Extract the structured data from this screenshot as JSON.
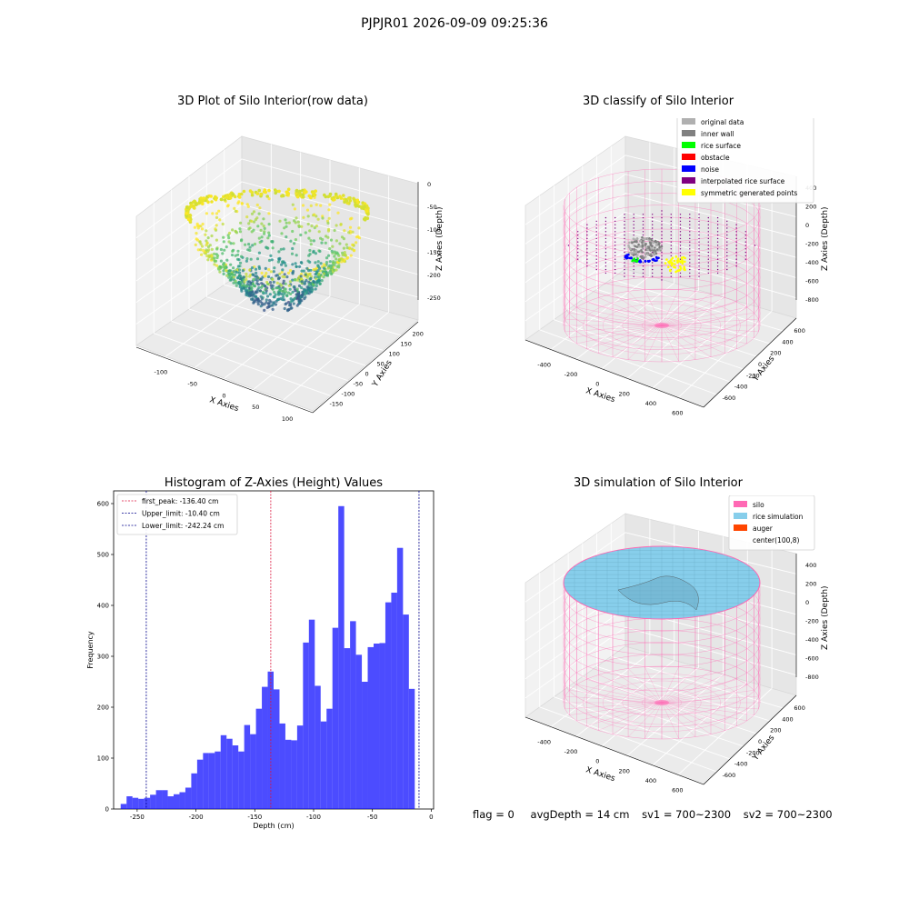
{
  "suptitle": "PJPJR01 2026-09-09 09:25:36",
  "panel_raw": {
    "title": "3D Plot of Silo Interior(row data)",
    "xlabel": "X Axies",
    "ylabel": "Y Axies",
    "zlabel": "Z Axies (Depth)",
    "x_ticks": [
      "-100",
      "-50",
      "0",
      "50",
      "100"
    ],
    "y_ticks": [
      "-150",
      "-100",
      "-50",
      "0",
      "50",
      "100",
      "150",
      "200"
    ],
    "z_ticks": [
      "0",
      "-50",
      "-100",
      "-150",
      "-200",
      "-250"
    ]
  },
  "panel_classify": {
    "title": "3D classify of Silo Interior",
    "xlabel": "X Axies",
    "ylabel": "Y Axies",
    "zlabel": "Z Axies (Depth)",
    "x_ticks": [
      "-400",
      "-200",
      "0",
      "200",
      "400",
      "600"
    ],
    "y_ticks": [
      "-600",
      "-400",
      "-200",
      "0",
      "200",
      "400",
      "600"
    ],
    "z_ticks": [
      "400",
      "200",
      "0",
      "-200",
      "-400",
      "-600",
      "-800"
    ],
    "legend": [
      {
        "label": "original data",
        "color": "#b0b0b0"
      },
      {
        "label": "inner wall",
        "color": "#808080"
      },
      {
        "label": "rice surface",
        "color": "#00ff00"
      },
      {
        "label": "obstacle",
        "color": "#ff0000"
      },
      {
        "label": "noise",
        "color": "#0000ff"
      },
      {
        "label": "interpolated rice surface",
        "color": "#800080"
      },
      {
        "label": "symmetric generated points",
        "color": "#ffff00"
      }
    ]
  },
  "panel_sim": {
    "title": "3D simulation of Silo Interior",
    "xlabel": "X Axies",
    "ylabel": "Y Axies",
    "zlabel": "Z Axies (Depth)",
    "x_ticks": [
      "-400",
      "-200",
      "0",
      "200",
      "400",
      "600"
    ],
    "y_ticks": [
      "-600",
      "-400",
      "-200",
      "0",
      "200",
      "400",
      "600"
    ],
    "z_ticks": [
      "400",
      "200",
      "0",
      "-200",
      "-400",
      "-600",
      "-800"
    ],
    "legend": [
      {
        "label": "silo",
        "color": "#ff69b4"
      },
      {
        "label": "rice simulation",
        "color": "#87ceeb"
      },
      {
        "label": "auger",
        "color": "#ff4500"
      },
      {
        "label": "center(100,8)",
        "color": ""
      }
    ]
  },
  "footer": {
    "flag": "flag = 0",
    "avg_depth": "avgDepth = 14 cm",
    "sv1": "sv1 = 700~2300",
    "sv2": "sv2 = 700~2300"
  },
  "chart_data": {
    "type": "bar",
    "title": "Histogram of Z-Axies (Height) Values",
    "xlabel": "Depth (cm)",
    "ylabel": "Frequency",
    "xlim": [
      -270,
      2
    ],
    "ylim": [
      0,
      625
    ],
    "x_ticks": [
      -250,
      -200,
      -150,
      -100,
      -50,
      0
    ],
    "y_ticks": [
      0,
      100,
      200,
      300,
      400,
      500,
      600
    ],
    "bin_width": 5,
    "bin_start": -264,
    "bar_color": "#0000ff",
    "values": [
      10,
      25,
      22,
      20,
      22,
      28,
      37,
      37,
      25,
      29,
      33,
      42,
      70,
      97,
      110,
      110,
      113,
      145,
      138,
      125,
      113,
      165,
      147,
      197,
      240,
      270,
      235,
      168,
      136,
      135,
      164,
      327,
      372,
      242,
      172,
      197,
      356,
      595,
      316,
      369,
      303,
      250,
      318,
      325,
      326,
      406,
      425,
      513,
      382,
      236
    ],
    "vlines": [
      {
        "label": "first_peak: -136.40 cm",
        "x": -136.4,
        "color": "#dc143c"
      },
      {
        "label": "Upper_limit: -10.40 cm",
        "x": -10.4,
        "color": "#00008b"
      },
      {
        "label": "Lower_limit: -242.24 cm",
        "x": -242.24,
        "color": "#00008b"
      }
    ]
  }
}
